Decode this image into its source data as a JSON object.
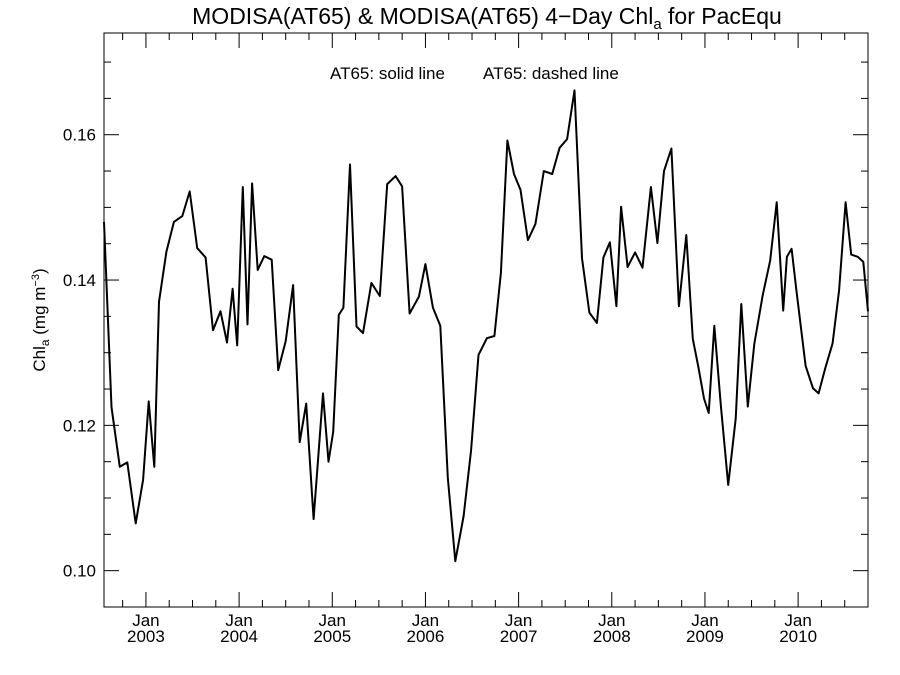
{
  "chart_data": {
    "type": "line",
    "title": {
      "main": "MODISA(AT65) & MODISA(AT65) 4−Day Chl",
      "sub": "a",
      "suffix": " for PacEqu"
    },
    "ylabel": {
      "main": "Chl",
      "sub": "a",
      "unit": " (mg m",
      "sup": "−3",
      "close": ")"
    },
    "annotations": {
      "solid": "AT65: solid line",
      "dashed": "AT65: dashed line"
    },
    "xlim": [
      2002.55,
      2010.75
    ],
    "ylim": [
      0.095,
      0.174
    ],
    "yticks": [
      0.1,
      0.12,
      0.14,
      0.16
    ],
    "ytick_labels": [
      "0.10",
      "0.12",
      "0.14",
      "0.16"
    ],
    "xticks": [
      {
        "month": "Jan",
        "year": "2003",
        "x": 2003.0
      },
      {
        "month": "Jan",
        "year": "2004",
        "x": 2004.0
      },
      {
        "month": "Jan",
        "year": "2005",
        "x": 2005.0
      },
      {
        "month": "Jan",
        "year": "2006",
        "x": 2006.0
      },
      {
        "month": "Jan",
        "year": "2007",
        "x": 2007.0
      },
      {
        "month": "Jan",
        "year": "2008",
        "x": 2008.0
      },
      {
        "month": "Jan",
        "year": "2009",
        "x": 2009.0
      },
      {
        "month": "Jan",
        "year": "2010",
        "x": 2010.0
      }
    ],
    "grid": false,
    "series": [
      {
        "style": "solid",
        "color": "#000000",
        "x": [
          2002.55,
          2002.63,
          2002.72,
          2002.8,
          2002.89,
          2002.97,
          2003.03,
          2003.09,
          2003.14,
          2003.22,
          2003.3,
          2003.39,
          2003.47,
          2003.55,
          2003.64,
          2003.72,
          2003.8,
          2003.87,
          2003.93,
          2003.98,
          2004.04,
          2004.09,
          2004.14,
          2004.2,
          2004.27,
          2004.35,
          2004.42,
          2004.5,
          2004.58,
          2004.65,
          2004.72,
          2004.8,
          2004.9,
          2004.96,
          2005.01,
          2005.07,
          2005.12,
          2005.19,
          2005.26,
          2005.33,
          2005.42,
          2005.51,
          2005.59,
          2005.68,
          2005.75,
          2005.83,
          2005.93,
          2006.0,
          2006.08,
          2006.16,
          2006.24,
          2006.32,
          2006.41,
          2006.49,
          2006.57,
          2006.66,
          2006.74,
          2006.81,
          2006.88,
          2006.95,
          2007.02,
          2007.1,
          2007.18,
          2007.27,
          2007.36,
          2007.44,
          2007.52,
          2007.6,
          2007.68,
          2007.76,
          2007.84,
          2007.91,
          2007.98,
          2008.05,
          2008.1,
          2008.17,
          2008.25,
          2008.33,
          2008.42,
          2008.49,
          2008.56,
          2008.64,
          2008.72,
          2008.8,
          2008.87,
          2008.93,
          2008.99,
          2009.04,
          2009.1,
          2009.17,
          2009.25,
          2009.33,
          2009.39,
          2009.46,
          2009.53,
          2009.62,
          2009.7,
          2009.77,
          2009.84,
          2009.88,
          2009.93,
          2009.98,
          2010.08,
          2010.16,
          2010.22,
          2010.29,
          2010.37,
          2010.44,
          2010.51,
          2010.57,
          2010.64,
          2010.7,
          2010.75
        ],
        "y": [
          0.148,
          0.1225,
          0.1143,
          0.1149,
          0.1065,
          0.1125,
          0.1233,
          0.1143,
          0.137,
          0.1439,
          0.148,
          0.1488,
          0.1522,
          0.1444,
          0.1431,
          0.1331,
          0.1357,
          0.1314,
          0.1388,
          0.131,
          0.1528,
          0.1339,
          0.1533,
          0.1414,
          0.1433,
          0.1428,
          0.1276,
          0.1316,
          0.1393,
          0.1177,
          0.123,
          0.1071,
          0.1244,
          0.115,
          0.1191,
          0.1352,
          0.1362,
          0.1559,
          0.1336,
          0.1327,
          0.1396,
          0.1378,
          0.1532,
          0.1543,
          0.1529,
          0.1354,
          0.1377,
          0.1422,
          0.1362,
          0.1337,
          0.1128,
          0.1013,
          0.1075,
          0.1166,
          0.1297,
          0.132,
          0.1323,
          0.141,
          0.1592,
          0.1546,
          0.1524,
          0.1455,
          0.1477,
          0.155,
          0.1546,
          0.1582,
          0.1594,
          0.1661,
          0.143,
          0.1355,
          0.1341,
          0.1431,
          0.1452,
          0.1364,
          0.1501,
          0.1418,
          0.1438,
          0.1417,
          0.1528,
          0.1451,
          0.155,
          0.1581,
          0.1364,
          0.1462,
          0.1319,
          0.128,
          0.1237,
          0.1217,
          0.1337,
          0.1228,
          0.1118,
          0.1209,
          0.1367,
          0.1226,
          0.1312,
          0.1379,
          0.1427,
          0.1507,
          0.1358,
          0.1432,
          0.1443,
          0.1387,
          0.1282,
          0.1251,
          0.1244,
          0.1278,
          0.1313,
          0.1386,
          0.1507,
          0.1435,
          0.1432,
          0.1425,
          0.1357
        ]
      }
    ]
  }
}
